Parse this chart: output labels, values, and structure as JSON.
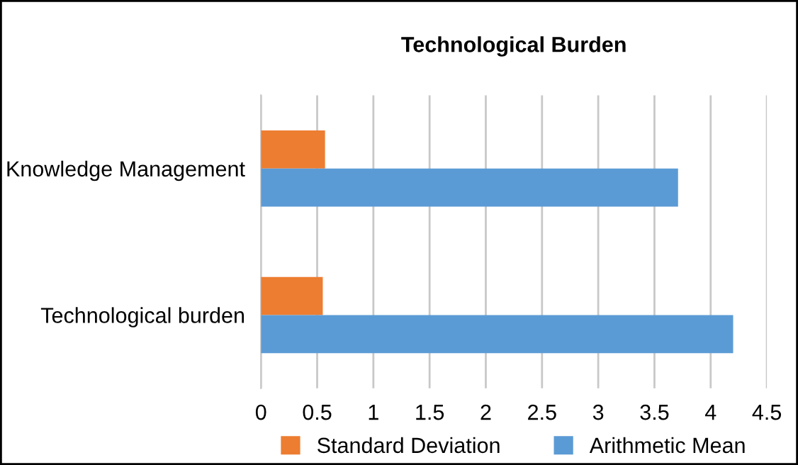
{
  "chart_data": {
    "type": "bar",
    "orientation": "horizontal",
    "title": "Technological Burden",
    "categories": [
      "Knowledge Management",
      "Technological burden"
    ],
    "series": [
      {
        "name": "Standard Deviation",
        "color": "#ed7d31",
        "values": [
          0.57,
          0.55
        ]
      },
      {
        "name": "Arithmetic Mean",
        "color": "#5b9bd5",
        "values": [
          3.71,
          4.2
        ]
      }
    ],
    "xlim": [
      0,
      4.5
    ],
    "xticks": [
      0,
      0.5,
      1,
      1.5,
      2,
      2.5,
      3,
      3.5,
      4,
      4.5
    ],
    "grid": "x",
    "legend": "bottom"
  }
}
